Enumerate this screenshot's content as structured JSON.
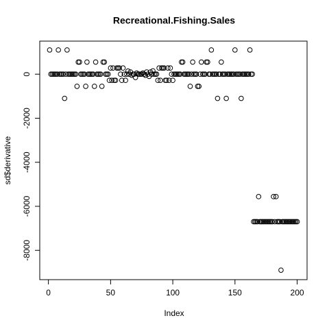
{
  "chart_data": {
    "type": "scatter",
    "title": "Recreational.Fishing.Sales",
    "x_label": "Index",
    "y_label": "sd$derivative",
    "x": [
      1,
      2,
      3,
      4,
      5,
      6,
      7,
      8,
      9,
      10,
      11,
      12,
      13,
      14,
      15,
      16,
      17,
      18,
      19,
      20,
      21,
      22,
      23,
      24,
      25,
      26,
      27,
      28,
      29,
      30,
      31,
      32,
      33,
      34,
      35,
      36,
      37,
      38,
      39,
      40,
      41,
      42,
      43,
      44,
      45,
      46,
      47,
      48,
      49,
      50,
      51,
      52,
      53,
      54,
      55,
      56,
      57,
      58,
      59,
      60,
      61,
      62,
      63,
      64,
      65,
      66,
      67,
      68,
      69,
      70,
      71,
      72,
      73,
      74,
      75,
      76,
      77,
      78,
      79,
      80,
      81,
      82,
      83,
      84,
      85,
      86,
      87,
      88,
      89,
      90,
      91,
      92,
      93,
      94,
      95,
      96,
      97,
      98,
      99,
      100,
      101,
      102,
      103,
      104,
      105,
      106,
      107,
      108,
      109,
      110,
      111,
      112,
      113,
      114,
      115,
      116,
      117,
      118,
      119,
      120,
      121,
      122,
      123,
      124,
      125,
      126,
      127,
      128,
      129,
      130,
      131,
      132,
      133,
      134,
      135,
      136,
      137,
      138,
      139,
      140,
      141,
      142,
      143,
      144,
      145,
      146,
      147,
      148,
      149,
      150,
      151,
      152,
      153,
      154,
      155,
      156,
      157,
      158,
      159,
      160,
      161,
      162,
      163,
      164,
      165,
      166,
      167,
      168,
      169,
      170,
      171,
      172,
      173,
      174,
      175,
      176,
      177,
      178,
      179,
      180,
      181,
      182,
      183,
      184,
      185,
      186,
      187,
      188,
      189,
      190,
      191,
      192,
      193,
      194,
      195,
      196,
      197,
      198,
      199,
      200
    ],
    "values": [
      1100,
      0,
      0,
      0,
      0,
      0,
      0,
      1100,
      0,
      0,
      0,
      0,
      -1100,
      0,
      1100,
      0,
      0,
      0,
      0,
      0,
      0,
      0,
      -550,
      550,
      550,
      0,
      0,
      0,
      0,
      -550,
      550,
      0,
      0,
      0,
      0,
      0,
      -550,
      550,
      0,
      0,
      0,
      0,
      -550,
      550,
      550,
      0,
      0,
      0,
      -280,
      280,
      -280,
      280,
      -280,
      -280,
      280,
      280,
      280,
      0,
      -280,
      280,
      0,
      -280,
      0,
      140,
      0,
      100,
      -50,
      0,
      0,
      -150,
      50,
      0,
      0,
      0,
      0,
      50,
      0,
      -50,
      100,
      0,
      -100,
      100,
      0,
      150,
      0,
      0,
      0,
      -280,
      280,
      -280,
      280,
      280,
      280,
      -280,
      -280,
      280,
      -280,
      280,
      0,
      -280,
      0,
      0,
      0,
      0,
      0,
      0,
      550,
      550,
      0,
      0,
      0,
      0,
      0,
      -550,
      0,
      550,
      0,
      0,
      0,
      -550,
      -550,
      0,
      550,
      0,
      0,
      0,
      550,
      550,
      0,
      0,
      1100,
      0,
      0,
      0,
      0,
      -1100,
      0,
      0,
      550,
      0,
      0,
      0,
      -1100,
      0,
      0,
      0,
      0,
      0,
      0,
      1100,
      0,
      0,
      0,
      0,
      -1100,
      0,
      0,
      0,
      0,
      0,
      0,
      1100,
      0,
      0,
      -6700,
      -6700,
      -6700,
      -6700,
      -5560,
      -6700,
      -6700,
      -6700,
      -6700,
      -6700,
      -6700,
      -6700,
      -6700,
      -6700,
      -6700,
      -6700,
      -5560,
      -6700,
      -5560,
      -6700,
      -6700,
      -6700,
      -8900,
      -6700,
      -6700,
      -6700,
      -6700,
      -6700,
      -6700,
      -6700,
      -6700,
      -6700,
      -6700,
      -6700,
      -6700,
      -6700
    ],
    "color": "#000000",
    "xlim": [
      -6.96,
      207.96
    ],
    "xticks": [
      0,
      50,
      100,
      150,
      200
    ],
    "ylim": [
      -9331,
      1501
    ],
    "yticks": [
      -8000,
      -6000,
      -4000,
      -2000,
      0
    ]
  }
}
